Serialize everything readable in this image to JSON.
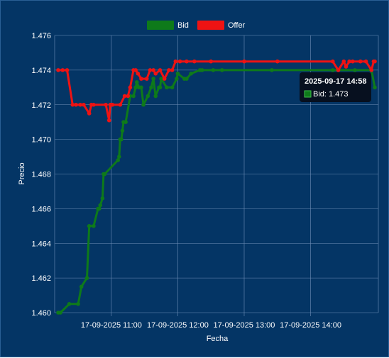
{
  "colors": {
    "background": "#043565",
    "grid": "#6f8fb7",
    "text": "#ffffff",
    "bid": "#0e7a1a",
    "offer": "#ee1313",
    "tooltip_bg": "#07101f"
  },
  "tooltip": {
    "title": "2025-09-17 14:58",
    "body": "Bid: 1.473"
  },
  "chart_data": {
    "type": "line",
    "title": "",
    "xlabel": "Fecha",
    "ylabel": "Precio",
    "ylim": [
      1.46,
      1.476
    ],
    "yticks": [
      "1.476",
      "1.474",
      "1.472",
      "1.470",
      "1.468",
      "1.466",
      "1.464",
      "1.462",
      "1.460"
    ],
    "xticks": [
      {
        "label": "17-09-2025  11:00",
        "time": "2025-09-17 11:00"
      },
      {
        "label": "17-09-2025  12:00",
        "time": "2025-09-17 12:00"
      },
      {
        "label": "17-09-2025  13:00",
        "time": "2025-09-17 13:00"
      },
      {
        "label": "17-09-2025  14:00",
        "time": "2025-09-17 14:00"
      }
    ],
    "grid": true,
    "legend_position": "top-center",
    "series": [
      {
        "name": "Bid",
        "color": "#0e7a1a",
        "x": [
          "2025-09-17 10:12",
          "2025-09-17 10:14",
          "2025-09-17 10:22",
          "2025-09-17 10:30",
          "2025-09-17 10:33",
          "2025-09-17 10:38",
          "2025-09-17 10:40",
          "2025-09-17 10:44",
          "2025-09-17 10:48",
          "2025-09-17 10:49",
          "2025-09-17 10:50",
          "2025-09-17 10:52",
          "2025-09-17 10:53",
          "2025-09-17 10:54",
          "2025-09-17 11:06",
          "2025-09-17 11:07",
          "2025-09-17 11:08",
          "2025-09-17 11:09",
          "2025-09-17 11:10",
          "2025-09-17 11:11",
          "2025-09-17 11:13",
          "2025-09-17 11:17",
          "2025-09-17 11:20",
          "2025-09-17 11:22",
          "2025-09-17 11:23",
          "2025-09-17 11:25",
          "2025-09-17 11:27",
          "2025-09-17 11:29",
          "2025-09-17 11:33",
          "2025-09-17 11:36",
          "2025-09-17 11:38",
          "2025-09-17 11:40",
          "2025-09-17 11:43",
          "2025-09-17 11:44",
          "2025-09-17 11:45",
          "2025-09-17 11:50",
          "2025-09-17 11:55",
          "2025-09-17 11:59",
          "2025-09-17 12:00",
          "2025-09-17 12:06",
          "2025-09-17 12:08",
          "2025-09-17 12:12",
          "2025-09-17 12:20",
          "2025-09-17 12:22",
          "2025-09-17 12:32",
          "2025-09-17 12:40",
          "2025-09-17 13:25",
          "2025-09-17 14:20",
          "2025-09-17 14:40",
          "2025-09-17 14:55",
          "2025-09-17 14:58"
        ],
        "values": [
          1.46,
          1.46,
          1.4605,
          1.4605,
          1.4615,
          1.462,
          1.465,
          1.465,
          1.466,
          1.466,
          1.4662,
          1.4666,
          1.468,
          1.468,
          1.4688,
          1.469,
          1.47,
          1.47,
          1.4705,
          1.471,
          1.471,
          1.4725,
          1.4725,
          1.473,
          1.4733,
          1.473,
          1.473,
          1.472,
          1.4725,
          1.473,
          1.4735,
          1.4725,
          1.473,
          1.473,
          1.4735,
          1.473,
          1.473,
          1.4735,
          1.4738,
          1.4735,
          1.4735,
          1.4738,
          1.474,
          1.474,
          1.474,
          1.474,
          1.474,
          1.474,
          1.474,
          1.474,
          1.473
        ]
      },
      {
        "name": "Offer",
        "color": "#ee1313",
        "x": [
          "2025-09-17 10:12",
          "2025-09-17 10:16",
          "2025-09-17 10:20",
          "2025-09-17 10:25",
          "2025-09-17 10:28",
          "2025-09-17 10:32",
          "2025-09-17 10:35",
          "2025-09-17 10:40",
          "2025-09-17 10:42",
          "2025-09-17 10:44",
          "2025-09-17 10:55",
          "2025-09-17 10:58",
          "2025-09-17 10:59",
          "2025-09-17 11:00",
          "2025-09-17 11:01",
          "2025-09-17 11:08",
          "2025-09-17 11:12",
          "2025-09-17 11:15",
          "2025-09-17 11:17",
          "2025-09-17 11:20",
          "2025-09-17 11:22",
          "2025-09-17 11:24",
          "2025-09-17 11:27",
          "2025-09-17 11:32",
          "2025-09-17 11:35",
          "2025-09-17 11:38",
          "2025-09-17 11:40",
          "2025-09-17 11:44",
          "2025-09-17 11:48",
          "2025-09-17 11:52",
          "2025-09-17 11:55",
          "2025-09-17 11:58",
          "2025-09-17 12:02",
          "2025-09-17 12:08",
          "2025-09-17 12:15",
          "2025-09-17 12:30",
          "2025-09-17 13:00",
          "2025-09-17 13:30",
          "2025-09-17 14:20",
          "2025-09-17 14:25",
          "2025-09-17 14:30",
          "2025-09-17 14:32",
          "2025-09-17 14:35",
          "2025-09-17 14:38",
          "2025-09-17 14:45",
          "2025-09-17 14:50",
          "2025-09-17 14:55",
          "2025-09-17 14:57",
          "2025-09-17 14:58"
        ],
        "values": [
          1.474,
          1.474,
          1.474,
          1.472,
          1.472,
          1.472,
          1.472,
          1.4715,
          1.472,
          1.472,
          1.472,
          1.4711,
          1.472,
          1.472,
          1.472,
          1.472,
          1.4725,
          1.4725,
          1.473,
          1.474,
          1.474,
          1.4738,
          1.4735,
          1.4735,
          1.474,
          1.474,
          1.4738,
          1.474,
          1.4735,
          1.474,
          1.474,
          1.4745,
          1.4745,
          1.4745,
          1.4745,
          1.4745,
          1.4745,
          1.4745,
          1.4745,
          1.474,
          1.4745,
          1.4742,
          1.4745,
          1.4745,
          1.4745,
          1.4745,
          1.474,
          1.4745,
          1.4745
        ]
      }
    ]
  }
}
